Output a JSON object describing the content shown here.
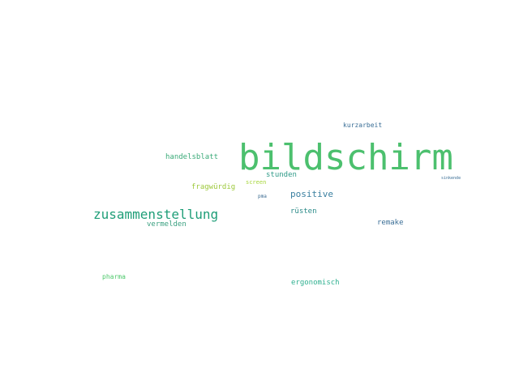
{
  "words": [
    {
      "text": "bildschirm",
      "color": "#4cc06e"
    },
    {
      "text": "zusammenstellung",
      "color": "#1f9e78"
    },
    {
      "text": "positive",
      "color": "#3a7fa0"
    },
    {
      "text": "handelsblatt",
      "color": "#3aaa78"
    },
    {
      "text": "fragwürdig",
      "color": "#9cc83a"
    },
    {
      "text": "stunden",
      "color": "#2f9a88"
    },
    {
      "text": "screen",
      "color": "#a7d63c"
    },
    {
      "text": "pma",
      "color": "#3a6a90"
    },
    {
      "text": "rüsten",
      "color": "#2a8a88"
    },
    {
      "text": "vermelden",
      "color": "#3aa080"
    },
    {
      "text": "remake",
      "color": "#3a6e96"
    },
    {
      "text": "kurzarbeit",
      "color": "#3a6e96"
    },
    {
      "text": "sinkende",
      "color": "#3a6e96"
    },
    {
      "text": "pharma",
      "color": "#4cc86a"
    },
    {
      "text": "ergonomisch",
      "color": "#2fb090"
    }
  ]
}
